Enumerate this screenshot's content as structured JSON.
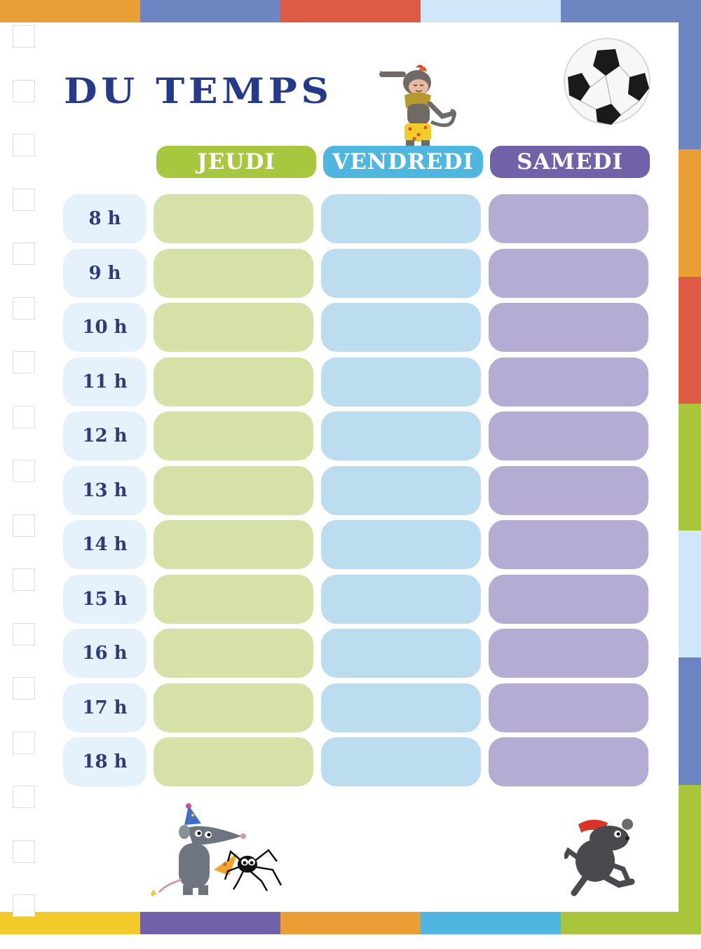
{
  "title": "DU TEMPS",
  "days": [
    {
      "label": "JEUDI",
      "header_color": "#a7c83e",
      "slot_color": "#d6e1a8"
    },
    {
      "label": "VENDREDI",
      "header_color": "#4fb6e0",
      "slot_color": "#bcdcef"
    },
    {
      "label": "SAMEDI",
      "header_color": "#7161a9",
      "slot_color": "#b4acd3"
    }
  ],
  "hours": [
    "8 h",
    "9 h",
    "10 h",
    "11 h",
    "12 h",
    "13 h",
    "14 h",
    "15 h",
    "16 h",
    "17 h",
    "18 h"
  ],
  "colors": {
    "title": "#253a8a",
    "hour_text": "#2f3a7c",
    "hour_cell": "#e5f1fb",
    "top_strip": [
      "#ea9f36",
      "#6d86c1",
      "#dd5b44",
      "#cfe7f8",
      "#6d86c1"
    ],
    "bottom_strip": [
      "#f1c929",
      "#7161a9",
      "#ea9f36",
      "#4fb6e0",
      "#a9c53c"
    ],
    "right_strip": [
      "#6d86c1",
      "#ea9f36",
      "#dd5b44",
      "#a9c53c",
      "#cfe7f8",
      "#6d86c1",
      "#a9c53c"
    ]
  },
  "illustrations": [
    "monkey-illustration",
    "soccer-ball-illustration",
    "rat-with-cheese-illustration",
    "spider-illustration",
    "rat-with-bandana-illustration"
  ]
}
